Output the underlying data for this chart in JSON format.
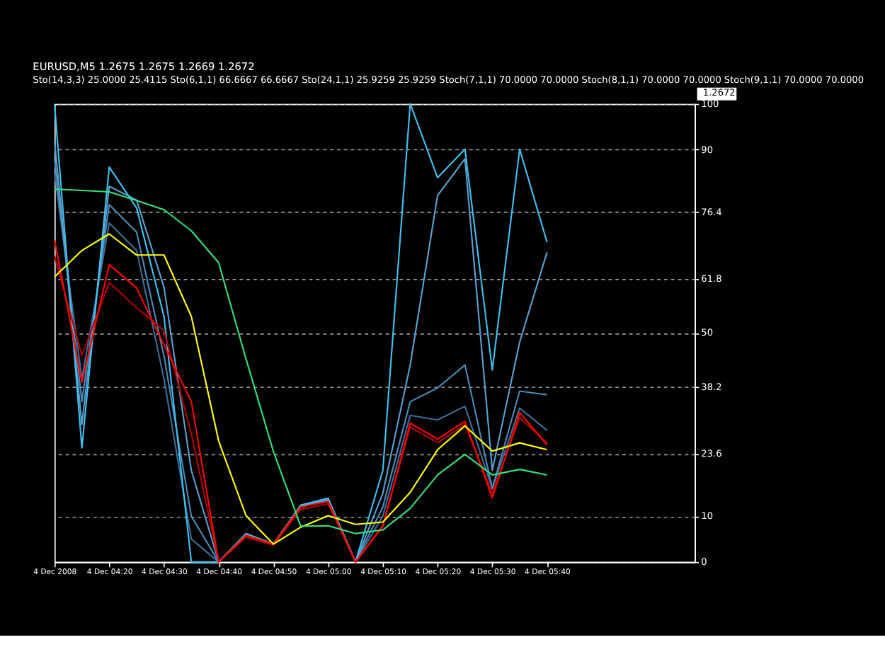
{
  "chart_data": {
    "type": "line",
    "title": "EURUSD,M5  1.2675 1.2675 1.2669 1.2672",
    "subtitle": "Sto(14,3,3) 25.0000 25.4115  Sto(6,1,1) 66.6667 66.6667  Sto(24,1,1) 25.9259 25.9259  Stoch(7,1,1) 70.0000 70.0000  Stoch(8,1,1) 70.0000 70.0000  Stoch(9,1,1) 70.0000 70.0000",
    "annotations": [
      "1.2672"
    ],
    "x": [
      "2008-12-04T04:10",
      "2008-12-04T04:15",
      "2008-12-04T04:20",
      "2008-12-04T04:25",
      "2008-12-04T04:30",
      "2008-12-04T04:35",
      "2008-12-04T04:40",
      "2008-12-04T04:45",
      "2008-12-04T04:50",
      "2008-12-04T04:55",
      "2008-12-04T05:00",
      "2008-12-04T05:05",
      "2008-12-04T05:10",
      "2008-12-04T05:15",
      "2008-12-04T05:20",
      "2008-12-04T05:25",
      "2008-12-04T05:30",
      "2008-12-04T05:35",
      "2008-12-04T05:40"
    ],
    "series": [
      {
        "color": "#3c6e96",
        "values": [
          85,
          40,
          74,
          68,
          40,
          5,
          0,
          5.8,
          3.9,
          12.2,
          13.6,
          0,
          10,
          32,
          31,
          34,
          16,
          33.6,
          28.7
        ]
      },
      {
        "color": "#4a8ab8",
        "values": [
          88,
          35,
          78,
          72,
          45,
          10,
          0,
          5.8,
          3.9,
          12.2,
          13.6,
          0,
          12,
          35,
          38,
          43,
          16,
          37.3,
          36.5
        ]
      },
      {
        "color": "#5aa0d0",
        "values": [
          92,
          30,
          82,
          79,
          60,
          20,
          0,
          6,
          4,
          12,
          13.5,
          0,
          15,
          43,
          80,
          88,
          20,
          48,
          67.6
        ]
      },
      {
        "color": "#41c0f0",
        "values": [
          100,
          24.9,
          86.2,
          77.3,
          53.6,
          0,
          0,
          6.2,
          3.9,
          12.4,
          13.9,
          0,
          20,
          100,
          83.9,
          90.1,
          41.9,
          90.1,
          69.8
        ]
      },
      {
        "color": "#b00000",
        "values": [
          66.8,
          45.1,
          61,
          55.5,
          50.5,
          28,
          0,
          5.4,
          3.7,
          11.5,
          12.7,
          0,
          8,
          29.5,
          26,
          30,
          15,
          31.5,
          25.9
        ]
      },
      {
        "color": "#ff0000",
        "values": [
          70.3,
          39.2,
          64.9,
          59.8,
          47.4,
          35,
          0,
          5.8,
          3.9,
          12,
          13.2,
          0,
          7.8,
          30.3,
          26.8,
          30.7,
          14,
          32.6,
          25.6
        ]
      },
      {
        "color": "#ffff00",
        "values": [
          62.2,
          68,
          71.6,
          67,
          67,
          53.6,
          26.4,
          10.1,
          3.9,
          7.6,
          10.1,
          8.2,
          8.7,
          15.2,
          24.5,
          29.7,
          24.2,
          26,
          24.5
        ]
      },
      {
        "color": "#33e07a",
        "values": [
          81.4,
          81.1,
          80.8,
          78.9,
          76.9,
          72.3,
          65.3,
          44.3,
          24.1,
          7.8,
          7.9,
          6.2,
          7,
          11.7,
          19,
          23.5,
          19,
          20.2,
          19
        ]
      }
    ],
    "xlim": [
      "2008-12-04T04:10",
      "2008-12-04T06:07"
    ],
    "xticks": [
      {
        "value": "2008-12-04T04:10",
        "label": "4 Dec 2008"
      },
      {
        "value": "2008-12-04T04:20",
        "label": "4 Dec 04:20"
      },
      {
        "value": "2008-12-04T04:30",
        "label": "4 Dec 04:30"
      },
      {
        "value": "2008-12-04T04:40",
        "label": "4 Dec 04:40"
      },
      {
        "value": "2008-12-04T04:50",
        "label": "4 Dec 04:50"
      },
      {
        "value": "2008-12-04T05:00",
        "label": "4 Dec 05:00"
      },
      {
        "value": "2008-12-04T05:10",
        "label": "4 Dec 05:10"
      },
      {
        "value": "2008-12-04T05:20",
        "label": "4 Dec 05:20"
      },
      {
        "value": "2008-12-04T05:30",
        "label": "4 Dec 05:30"
      },
      {
        "value": "2008-12-04T05:40",
        "label": "4 Dec 05:40"
      }
    ],
    "ylim": [
      0,
      100
    ],
    "yticks": [
      0,
      10,
      23.6,
      38.2,
      50,
      61.8,
      76.4,
      90,
      100
    ],
    "grid": "y",
    "marker": "none",
    "line_style": "solid"
  }
}
